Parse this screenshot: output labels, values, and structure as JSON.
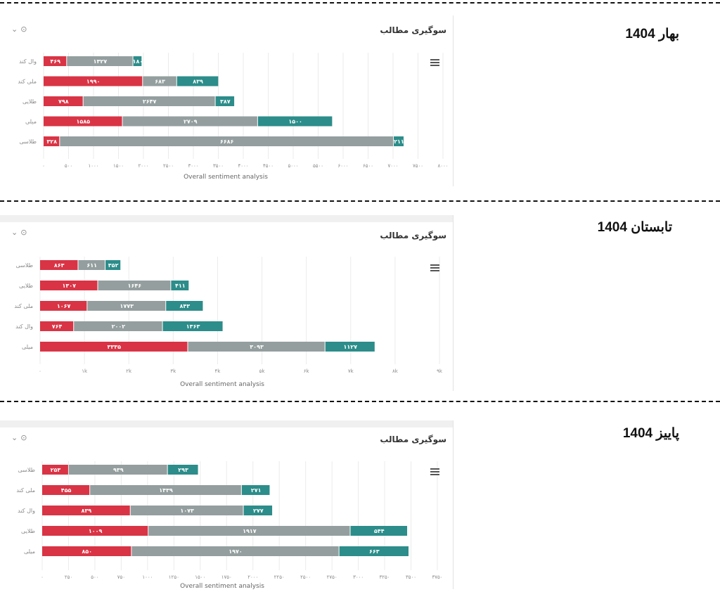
{
  "panel_title": "سوگیری مطالب",
  "controls": {
    "collapse_icon": "chevron-down-icon",
    "info_icon": "info-icon",
    "menu_icon": "hamburger-menu-icon"
  },
  "colors": {
    "negative": "#d93445",
    "neutral": "#949e9e",
    "positive": "#2c8d8a"
  },
  "charts": [
    {
      "season_label": "بهار 1404"
    },
    {
      "season_label": "تابستان 1404"
    },
    {
      "season_label": "پاییز 1404"
    }
  ],
  "chart_data": [
    {
      "type": "bar",
      "stacked": true,
      "orientation": "horizontal",
      "title": "سوگیری مطالب",
      "xlabel": "Overall sentiment analysis",
      "xlim": [
        0,
        8000
      ],
      "xticks": [
        "۰",
        "۵۰۰",
        "۱۰۰۰",
        "۱۵۰۰",
        "۲۰۰۰",
        "۲۵۰۰",
        "۳۰۰۰",
        "۳۵۰۰",
        "۴۰۰۰",
        "۴۵۰۰",
        "۵۰۰۰",
        "۵۵۰۰",
        "۶۰۰۰",
        "۶۵۰۰",
        "۷۰۰۰",
        "۷۵۰۰",
        "۸۰۰۰"
      ],
      "categories": [
        "وال کند",
        "ملی کند",
        "طلایی",
        "میلی",
        "طلاسی"
      ],
      "series": [
        {
          "values": [
            469,
            1990,
            798,
            1585,
            328
          ],
          "labels": [
            "۴۶۹",
            "۱۹۹۰",
            "۷۹۸",
            "۱۵۸۵",
            "۳۲۸"
          ]
        },
        {
          "values": [
            1327,
            683,
            2647,
            2709,
            6686
          ],
          "labels": [
            "۱۳۲۷",
            "۶۸۳",
            "۲۶۴۷",
            "۲۷۰۹",
            "۶۶۸۶"
          ]
        },
        {
          "values": [
            180,
            839,
            387,
            1500,
            211
          ],
          "labels": [
            "۱۸۰",
            "۸۳۹",
            "۳۸۷",
            "۱۵۰۰",
            "۲۱۱"
          ]
        }
      ]
    },
    {
      "type": "bar",
      "stacked": true,
      "orientation": "horizontal",
      "title": "سوگیری مطالب",
      "xlabel": "Overall sentiment analysis",
      "xlim": [
        0,
        9000
      ],
      "xticks": [
        "۰",
        "۱k",
        "۲k",
        "۳k",
        "۴k",
        "۵k",
        "۶k",
        "۷k",
        "۸k",
        "۹k"
      ],
      "categories": [
        "طلاسی",
        "طلایی",
        "ملی کند",
        "وال کند",
        "میلی"
      ],
      "series": [
        {
          "values": [
            863,
            1307,
            1067,
            764,
            3335
          ],
          "labels": [
            "۸۶۳",
            "۱۳۰۷",
            "۱۰۶۷",
            "۷۶۴",
            "۳۳۳۵"
          ]
        },
        {
          "values": [
            611,
            1646,
            1773,
            2002,
            3093
          ],
          "labels": [
            "۶۱۱",
            "۱۶۴۶",
            "۱۷۷۳",
            "۲۰۰۲",
            "۳۰۹۳"
          ]
        },
        {
          "values": [
            352,
            411,
            843,
            1363,
            1127
          ],
          "labels": [
            "۳۵۲",
            "۴۱۱",
            "۸۴۳",
            "۱۳۶۳",
            "۱۱۲۷"
          ]
        }
      ]
    },
    {
      "type": "bar",
      "stacked": true,
      "orientation": "horizontal",
      "title": "سوگیری مطالب",
      "xlabel": "Overall sentiment analysis",
      "xlim": [
        0,
        3750
      ],
      "xticks": [
        "۰",
        "۲۵۰",
        "۵۰۰",
        "۷۵۰",
        "۱۰۰۰",
        "۱۲۵۰",
        "۱۵۰۰",
        "۱۷۵۰",
        "۲۰۰۰",
        "۲۲۵۰",
        "۲۵۰۰",
        "۲۷۵۰",
        "۳۰۰۰",
        "۳۲۵۰",
        "۳۵۰۰",
        "۳۷۵۰"
      ],
      "categories": [
        "طلاسی",
        "ملی کند",
        "وال کند",
        "طلایی",
        "میلی"
      ],
      "series": [
        {
          "values": [
            253,
            455,
            839,
            1009,
            850
          ],
          "labels": [
            "۲۵۳",
            "۴۵۵",
            "۸۳۹",
            "۱۰۰۹",
            "۸۵۰"
          ]
        },
        {
          "values": [
            939,
            1439,
            1073,
            1917,
            1970
          ],
          "labels": [
            "۹۳۹",
            "۱۴۳۹",
            "۱۰۷۳",
            "۱۹۱۷",
            "۱۹۷۰"
          ]
        },
        {
          "values": [
            293,
            271,
            277,
            544,
            663
          ],
          "labels": [
            "۲۹۳",
            "۲۷۱",
            "۲۷۷",
            "۵۴۴",
            "۶۶۳"
          ]
        }
      ]
    }
  ]
}
